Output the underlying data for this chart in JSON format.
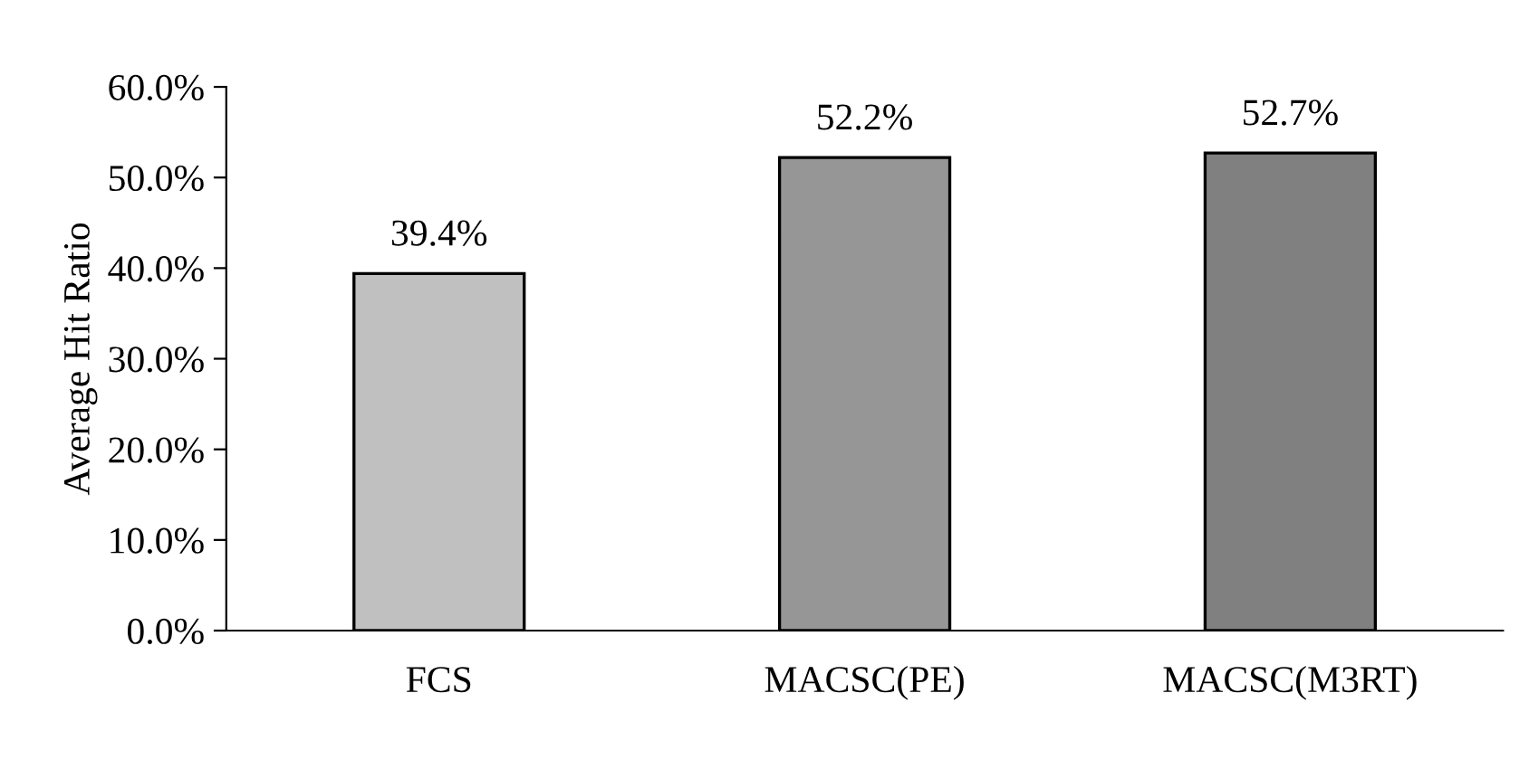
{
  "chart_data": {
    "type": "bar",
    "ylabel": "Average Hit Ratio",
    "categories": [
      "FCS",
      "MACSC(PE)",
      "MACSC(M3RT)"
    ],
    "values": [
      39.4,
      52.2,
      52.7
    ],
    "colors": [
      "#c0c0c0",
      "#969696",
      "#808080"
    ],
    "value_labels": [
      "39.4%",
      "52.2%",
      "52.7%"
    ],
    "ylim": [
      0,
      60
    ],
    "yticks": [
      {
        "value": 0,
        "label": "0.0%"
      },
      {
        "value": 10,
        "label": "10.0%"
      },
      {
        "value": 20,
        "label": "20.0%"
      },
      {
        "value": 30,
        "label": "30.0%"
      },
      {
        "value": 40,
        "label": "40.0%"
      },
      {
        "value": 50,
        "label": "50.0%"
      },
      {
        "value": 60,
        "label": "60.0%"
      }
    ],
    "grid": false
  }
}
